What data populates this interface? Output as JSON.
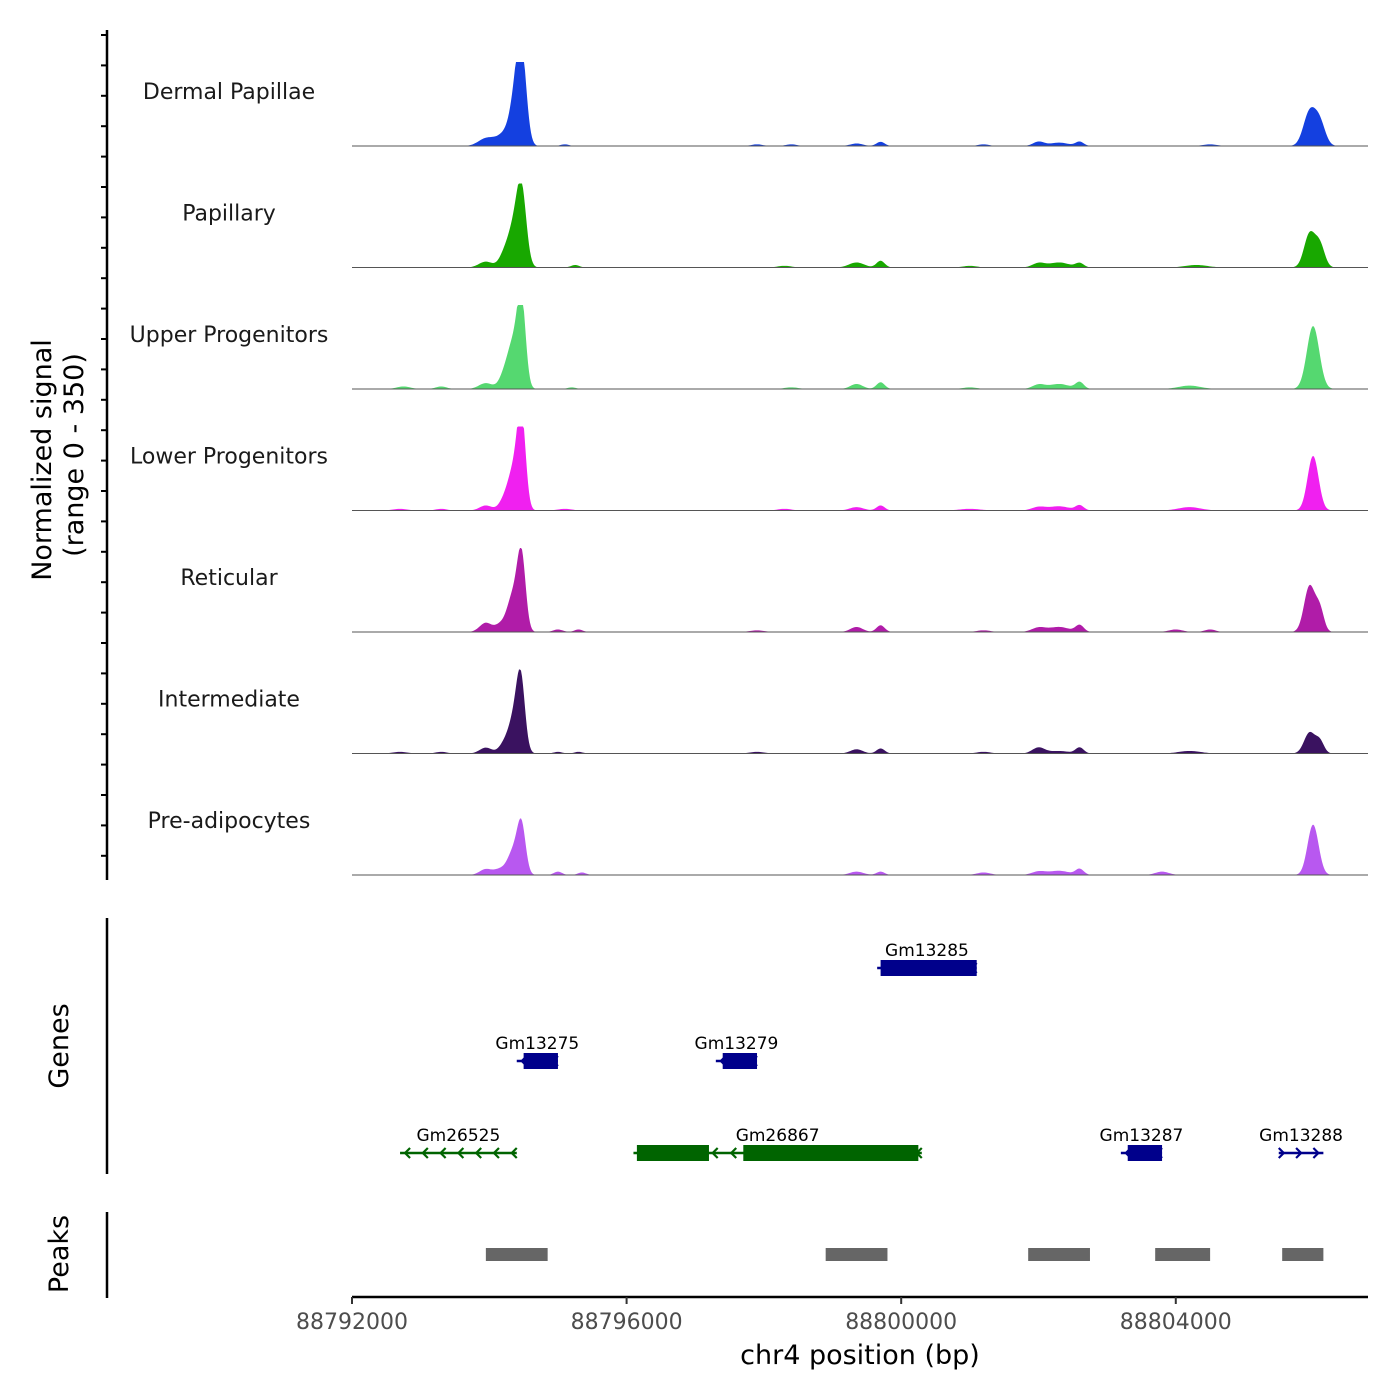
{
  "chart_data": {
    "type": "area",
    "title": "",
    "xlabel": "chr4 position (bp)",
    "ylabel_line1": "Normalized signal",
    "ylabel_line2": "(range 0 - 350)",
    "genes_label": "Genes",
    "peaks_label": "Peaks",
    "xlim": [
      88792000,
      88806800
    ],
    "ylim": [
      0,
      350
    ],
    "x_ticks": [
      88792000,
      88796000,
      88800000,
      88804000
    ],
    "x_tick_labels": [
      "88792000",
      "88796000",
      "88800000",
      "88804000"
    ],
    "signal_shapes": {
      "note": "peak positions (bp), half-widths (bp) and relative heights shared by all tracks",
      "main_peak": {
        "center": 88794450,
        "halfwidth": 120
      },
      "side_bumps": [
        88793950,
        88794200,
        88799350,
        88799700,
        88802000,
        88802600,
        88805950
      ]
    },
    "tracks": [
      {
        "name": "Dermal Papillae",
        "color": "#1440E0",
        "peaks": [
          [
            88793950,
            110,
            0.09
          ],
          [
            88794100,
            80,
            0.05
          ],
          [
            88794200,
            70,
            0.08
          ],
          [
            88794380,
            90,
            0.55
          ],
          [
            88794470,
            70,
            0.95
          ],
          [
            88795100,
            60,
            0.02
          ],
          [
            88797900,
            80,
            0.02
          ],
          [
            88798400,
            80,
            0.02
          ],
          [
            88799350,
            90,
            0.03
          ],
          [
            88799700,
            60,
            0.05
          ],
          [
            88801200,
            80,
            0.02
          ],
          [
            88802000,
            80,
            0.05
          ],
          [
            88802300,
            140,
            0.04
          ],
          [
            88802600,
            60,
            0.05
          ],
          [
            88804500,
            100,
            0.02
          ],
          [
            88805950,
            90,
            0.4
          ],
          [
            88806100,
            80,
            0.26
          ]
        ]
      },
      {
        "name": "Papillary",
        "color": "#18A800",
        "peaks": [
          [
            88793950,
            100,
            0.07
          ],
          [
            88794200,
            70,
            0.1
          ],
          [
            88794350,
            90,
            0.45
          ],
          [
            88794470,
            70,
            0.85
          ],
          [
            88795250,
            60,
            0.03
          ],
          [
            88798300,
            100,
            0.02
          ],
          [
            88799350,
            110,
            0.06
          ],
          [
            88799700,
            60,
            0.08
          ],
          [
            88801000,
            100,
            0.02
          ],
          [
            88802000,
            90,
            0.05
          ],
          [
            88802300,
            150,
            0.06
          ],
          [
            88802600,
            60,
            0.05
          ],
          [
            88804300,
            160,
            0.03
          ],
          [
            88805950,
            80,
            0.4
          ],
          [
            88806100,
            70,
            0.26
          ]
        ]
      },
      {
        "name": "Upper Progenitors",
        "color": "#55D870",
        "peaks": [
          [
            88792750,
            100,
            0.03
          ],
          [
            88793300,
            80,
            0.03
          ],
          [
            88793950,
            100,
            0.07
          ],
          [
            88794200,
            70,
            0.1
          ],
          [
            88794350,
            90,
            0.55
          ],
          [
            88794470,
            60,
            0.95
          ],
          [
            88795200,
            60,
            0.02
          ],
          [
            88798400,
            100,
            0.02
          ],
          [
            88799350,
            90,
            0.06
          ],
          [
            88799700,
            60,
            0.08
          ],
          [
            88801000,
            100,
            0.02
          ],
          [
            88802000,
            90,
            0.05
          ],
          [
            88802300,
            150,
            0.06
          ],
          [
            88802600,
            60,
            0.08
          ],
          [
            88804200,
            160,
            0.04
          ],
          [
            88806000,
            90,
            0.75
          ]
        ]
      },
      {
        "name": "Lower Progenitors",
        "color": "#F020F0",
        "peaks": [
          [
            88792700,
            100,
            0.02
          ],
          [
            88793300,
            80,
            0.02
          ],
          [
            88793950,
            90,
            0.06
          ],
          [
            88794200,
            70,
            0.08
          ],
          [
            88794360,
            90,
            0.5
          ],
          [
            88794470,
            60,
            1.0
          ],
          [
            88795100,
            100,
            0.02
          ],
          [
            88798300,
            100,
            0.02
          ],
          [
            88799350,
            100,
            0.04
          ],
          [
            88799700,
            60,
            0.06
          ],
          [
            88801000,
            150,
            0.02
          ],
          [
            88802000,
            100,
            0.04
          ],
          [
            88802300,
            150,
            0.05
          ],
          [
            88802600,
            60,
            0.06
          ],
          [
            88804200,
            160,
            0.04
          ],
          [
            88806000,
            80,
            0.65
          ]
        ]
      },
      {
        "name": "Reticular",
        "color": "#B01CA8",
        "peaks": [
          [
            88793950,
            90,
            0.11
          ],
          [
            88794150,
            70,
            0.07
          ],
          [
            88794350,
            90,
            0.45
          ],
          [
            88794470,
            60,
            0.82
          ],
          [
            88795000,
            70,
            0.03
          ],
          [
            88795300,
            60,
            0.03
          ],
          [
            88797900,
            100,
            0.02
          ],
          [
            88799350,
            90,
            0.06
          ],
          [
            88799700,
            60,
            0.08
          ],
          [
            88801200,
            100,
            0.02
          ],
          [
            88802000,
            100,
            0.05
          ],
          [
            88802300,
            150,
            0.06
          ],
          [
            88802600,
            60,
            0.08
          ],
          [
            88804000,
            100,
            0.03
          ],
          [
            88804500,
            80,
            0.03
          ],
          [
            88805950,
            80,
            0.55
          ],
          [
            88806100,
            60,
            0.25
          ]
        ]
      },
      {
        "name": "Intermediate",
        "color": "#3A1260",
        "peaks": [
          [
            88792700,
            100,
            0.02
          ],
          [
            88793300,
            80,
            0.02
          ],
          [
            88793950,
            90,
            0.07
          ],
          [
            88794200,
            70,
            0.08
          ],
          [
            88794370,
            90,
            0.45
          ],
          [
            88794460,
            60,
            0.72
          ],
          [
            88795000,
            60,
            0.02
          ],
          [
            88795300,
            60,
            0.02
          ],
          [
            88797900,
            100,
            0.02
          ],
          [
            88799350,
            90,
            0.05
          ],
          [
            88799700,
            60,
            0.06
          ],
          [
            88801200,
            100,
            0.02
          ],
          [
            88802000,
            90,
            0.07
          ],
          [
            88802300,
            150,
            0.03
          ],
          [
            88802600,
            60,
            0.07
          ],
          [
            88804200,
            160,
            0.03
          ],
          [
            88805950,
            80,
            0.25
          ],
          [
            88806100,
            60,
            0.14
          ]
        ]
      },
      {
        "name": "Pre-adipocytes",
        "color": "#B858F0",
        "peaks": [
          [
            88793950,
            90,
            0.07
          ],
          [
            88794150,
            80,
            0.06
          ],
          [
            88794360,
            90,
            0.3
          ],
          [
            88794470,
            60,
            0.52
          ],
          [
            88795000,
            60,
            0.04
          ],
          [
            88795350,
            60,
            0.03
          ],
          [
            88799350,
            100,
            0.04
          ],
          [
            88799700,
            60,
            0.04
          ],
          [
            88801200,
            100,
            0.03
          ],
          [
            88802000,
            100,
            0.04
          ],
          [
            88802300,
            150,
            0.05
          ],
          [
            88802600,
            60,
            0.07
          ],
          [
            88803800,
            100,
            0.04
          ],
          [
            88806000,
            80,
            0.6
          ]
        ]
      }
    ],
    "genes": [
      {
        "name": "Gm13285",
        "row": 0,
        "strand": "-",
        "color": "#00008B",
        "start": 88799650,
        "end": 88801100,
        "exons": [
          [
            88799700,
            88801100
          ]
        ]
      },
      {
        "name": "Gm13275",
        "row": 1,
        "strand": "-",
        "color": "#00008B",
        "start": 88794400,
        "end": 88795000,
        "exons": [
          [
            88794500,
            88795000
          ]
        ]
      },
      {
        "name": "Gm13279",
        "row": 1,
        "strand": "-",
        "color": "#00008B",
        "start": 88797300,
        "end": 88797900,
        "exons": [
          [
            88797400,
            88797900
          ]
        ]
      },
      {
        "name": "Gm26525",
        "row": 2,
        "strand": "-",
        "color": "#006400",
        "start": 88792700,
        "end": 88794400,
        "exons": []
      },
      {
        "name": "Gm26867",
        "row": 2,
        "strand": "-",
        "color": "#006400",
        "start": 88796100,
        "end": 88800300,
        "exons": [
          [
            88796150,
            88797200
          ],
          [
            88797700,
            88800250
          ]
        ]
      },
      {
        "name": "Gm13287",
        "row": 2,
        "strand": "-",
        "color": "#00008B",
        "start": 88803200,
        "end": 88803800,
        "exons": [
          [
            88803300,
            88803800
          ]
        ]
      },
      {
        "name": "Gm13288",
        "row": 2,
        "strand": "+",
        "color": "#00008B",
        "start": 88805500,
        "end": 88806150,
        "exons": []
      }
    ],
    "peaks": [
      [
        88793950,
        88794850
      ],
      [
        88798900,
        88799800
      ],
      [
        88801850,
        88802750
      ],
      [
        88803700,
        88804500
      ],
      [
        88805550,
        88806150
      ]
    ],
    "peak_color": "#666666"
  }
}
